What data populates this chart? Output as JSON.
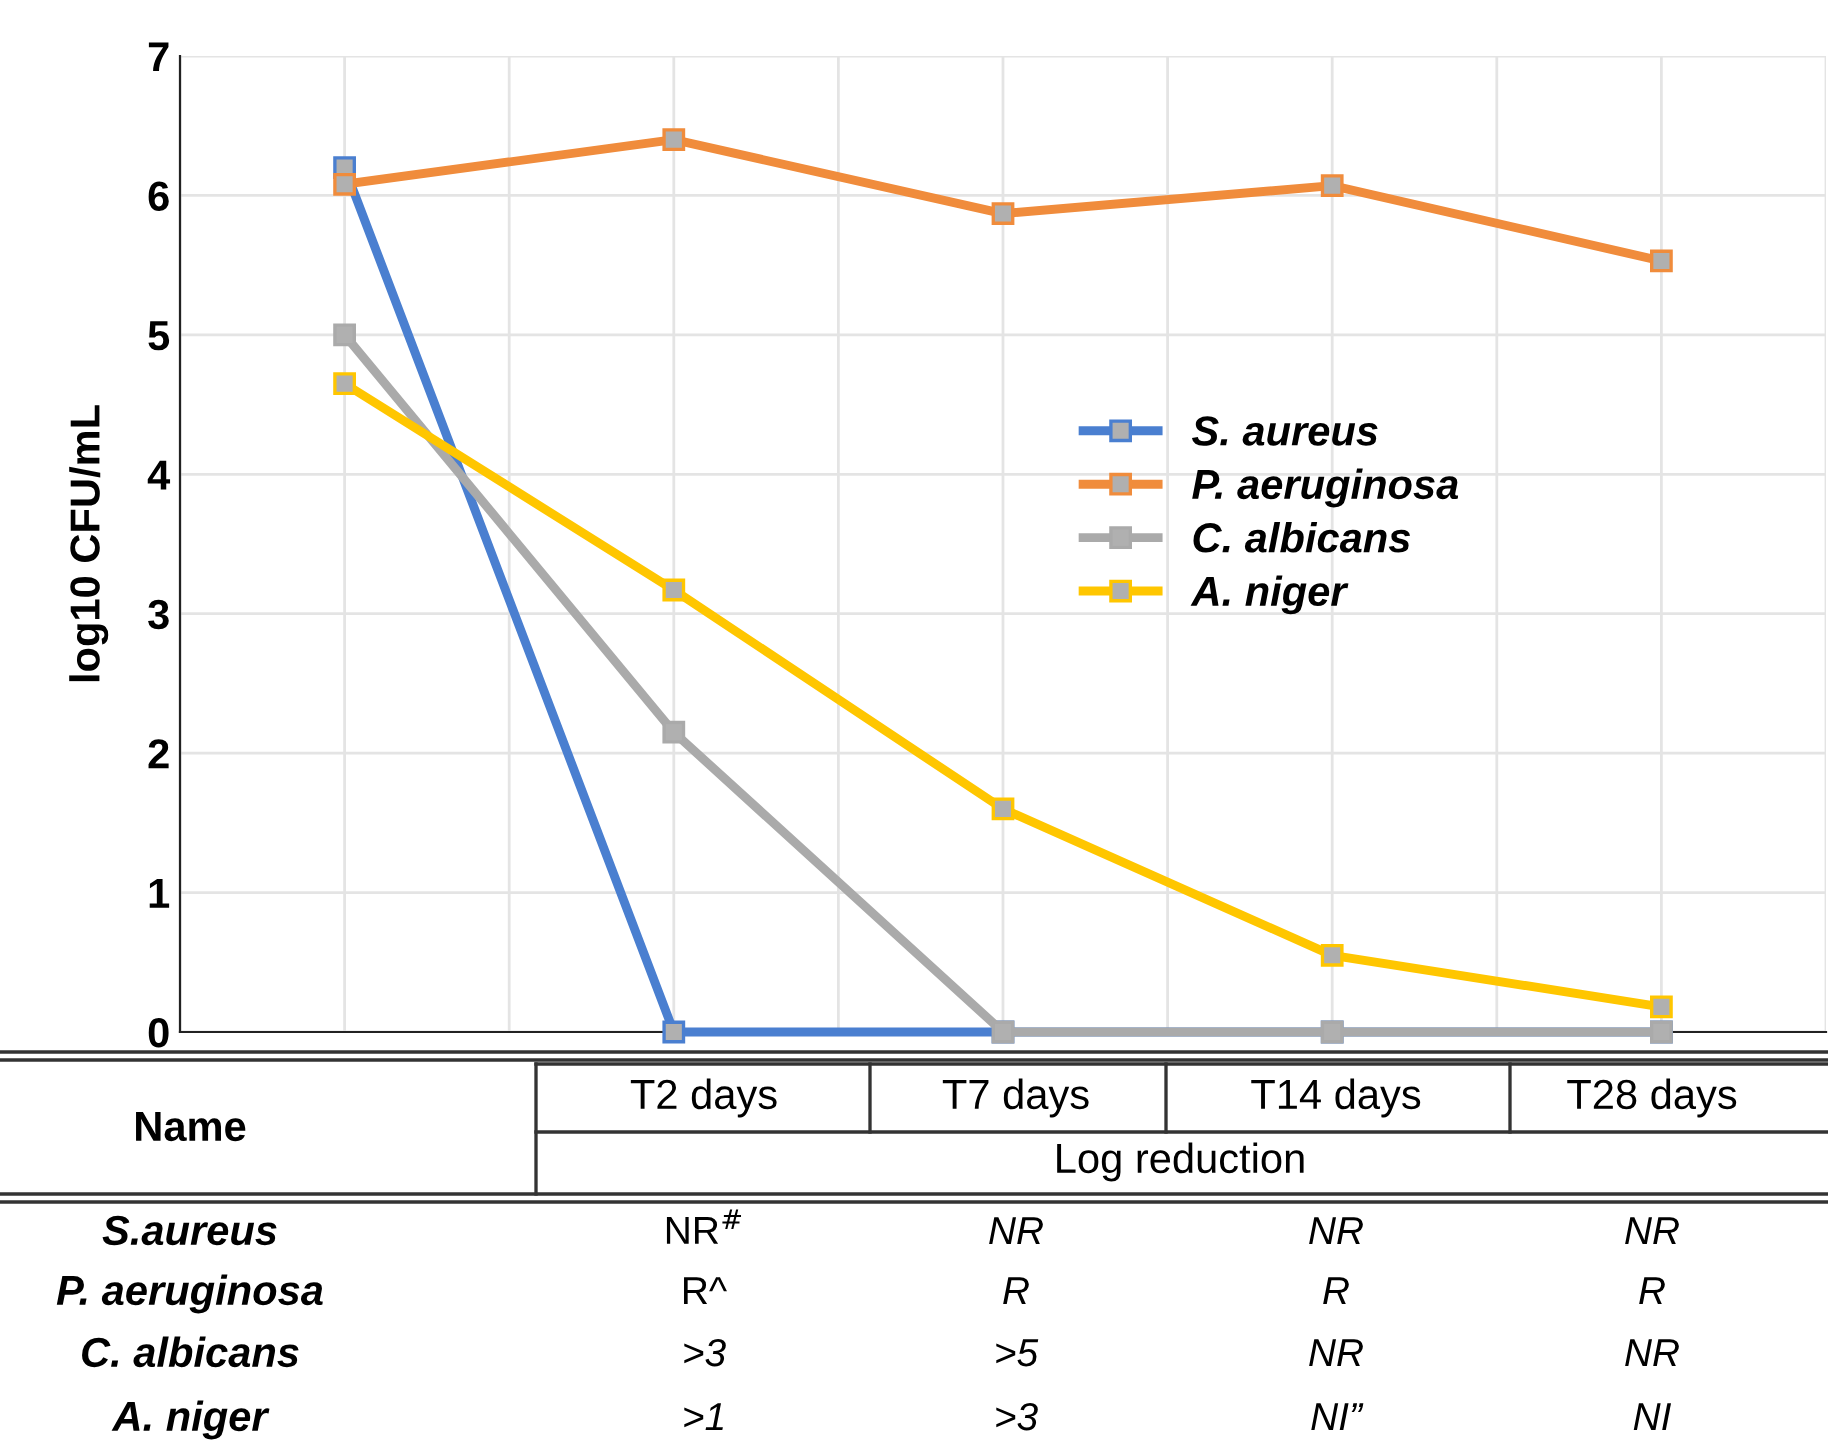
{
  "chart_data": {
    "type": "line",
    "ylabel": "log10 CFU/mL",
    "categories": [
      null,
      null,
      null,
      null,
      null
    ],
    "series": [
      {
        "name": "S. aureus",
        "color": "#4a7fd0",
        "values": [
          6.2,
          0,
          0,
          0,
          0
        ]
      },
      {
        "name": "P. aeruginosa",
        "color": "#f08c3c",
        "values": [
          6.08,
          6.4,
          5.87,
          6.07,
          5.53
        ]
      },
      {
        "name": "C. albicans",
        "color": "#aaaaaa",
        "values": [
          5.0,
          2.15,
          0,
          0,
          0
        ]
      },
      {
        "name": "A. niger",
        "color": "#ffc600",
        "values": [
          4.65,
          3.17,
          1.6,
          0.55,
          0.18
        ]
      }
    ],
    "ylim": [
      0,
      7
    ],
    "yticks": [
      0,
      1,
      2,
      3,
      4,
      5,
      6,
      7
    ],
    "grid": true,
    "legend": "right",
    "marker": "square",
    "line_style": "solid",
    "annotations": [
      "Name",
      "T2 days",
      "T7 days",
      "T14 days",
      "T28 days",
      "Log reduction",
      "S.aureus",
      "NR$^{#}$",
      "NR",
      "NR",
      "NR",
      "P. aeruginosa",
      "R^",
      "R",
      "R",
      "R",
      "C. albicans",
      ">3",
      ">5",
      "NR",
      "NR",
      "A. niger",
      ">1",
      ">3",
      "NI”",
      "NI"
    ]
  }
}
